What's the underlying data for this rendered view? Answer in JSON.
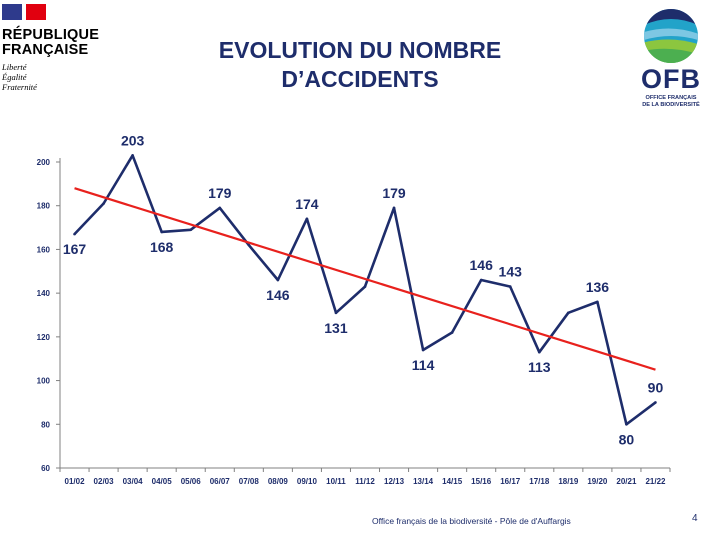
{
  "header": {
    "republic_name": "RÉPUBLIQUE\nFRANÇAISE",
    "motto": "Liberté\nÉgalité\nFraternité",
    "slide_title": "EVOLUTION DU NOMBRE\nD’ACCIDENTS",
    "ofb_letters": "OFB",
    "ofb_subtitle": "OFFICE FRANÇAIS\nDE LA BIODIVERSITÉ"
  },
  "footer": {
    "text": "Office français de la biodiversité  -  Pôle de d'Auffargis",
    "page_number": "4"
  },
  "colors": {
    "navy": "#1e2d6b",
    "trend_red": "#e8211d",
    "flag_blue": "#2e3a8c",
    "flag_red": "#e1000f"
  },
  "chart_data": {
    "type": "line",
    "categories": [
      "01/02",
      "02/03",
      "03/04",
      "04/05",
      "05/06",
      "06/07",
      "07/08",
      "08/09",
      "09/10",
      "10/11",
      "11/12",
      "12/13",
      "13/14",
      "14/15",
      "15/16",
      "16/17",
      "17/18",
      "18/19",
      "19/20",
      "20/21",
      "21/22"
    ],
    "series": [
      {
        "values": [
          167,
          181,
          203,
          168,
          169,
          179,
          162,
          146,
          174,
          131,
          143,
          179,
          114,
          122,
          146,
          143,
          113,
          131,
          136,
          80,
          90
        ],
        "color": "#1e2d6b"
      }
    ],
    "trendline": {
      "start": 188,
      "end": 105,
      "color": "#e8211d"
    },
    "labels": [
      {
        "index": 0,
        "value": "167",
        "pos": "below"
      },
      {
        "index": 2,
        "value": "203",
        "pos": "above"
      },
      {
        "index": 3,
        "value": "168",
        "pos": "below"
      },
      {
        "index": 5,
        "value": "179",
        "pos": "above"
      },
      {
        "index": 7,
        "value": "146",
        "pos": "below"
      },
      {
        "index": 8,
        "value": "174",
        "pos": "above"
      },
      {
        "index": 9,
        "value": "131",
        "pos": "below"
      },
      {
        "index": 11,
        "value": "179",
        "pos": "above"
      },
      {
        "index": 12,
        "value": "114",
        "pos": "below"
      },
      {
        "index": 14,
        "value": "146",
        "pos": "above"
      },
      {
        "index": 15,
        "value": "143",
        "pos": "above"
      },
      {
        "index": 16,
        "value": "113",
        "pos": "below"
      },
      {
        "index": 18,
        "value": "136",
        "pos": "above"
      },
      {
        "index": 19,
        "value": "80",
        "pos": "below"
      },
      {
        "index": 20,
        "value": "90",
        "pos": "above"
      }
    ],
    "yticks": [
      60,
      80,
      100,
      120,
      140,
      160,
      180,
      200
    ],
    "ylim": [
      60,
      203
    ],
    "title": "",
    "xlabel": "",
    "ylabel": "",
    "grid": false
  }
}
